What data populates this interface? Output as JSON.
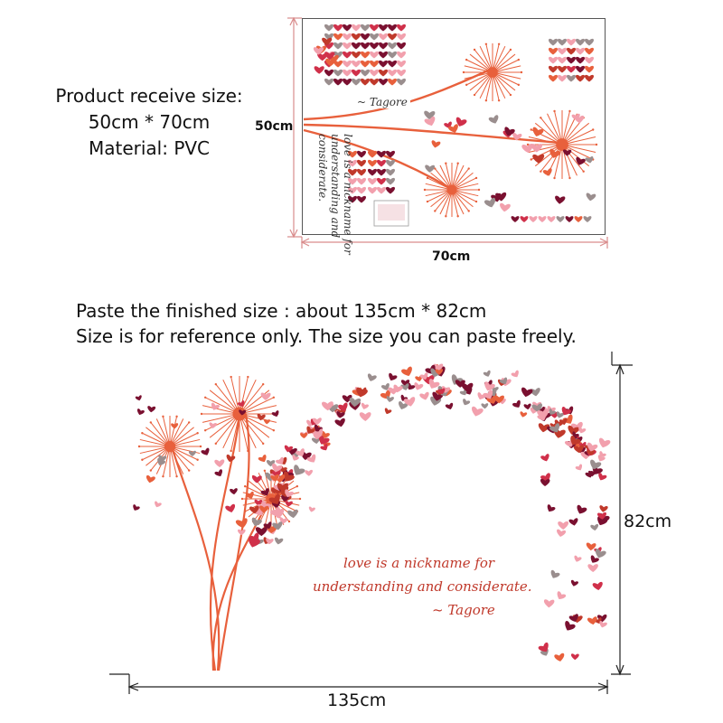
{
  "spec": {
    "line1": "Product receive size:",
    "line2": "50cm * 70cm",
    "line3": "Material: PVC"
  },
  "sheet": {
    "height_label": "50cm",
    "width_label": "70cm",
    "quote_line1": "love is a nickname for",
    "quote_line2": "understanding and",
    "quote_line3": "considerate.",
    "signature": "~ Tagore"
  },
  "notes": {
    "finished_size": "Paste the finished size : about 135cm * 82cm",
    "reference": "Size is for reference only. The size you can paste freely."
  },
  "wall": {
    "quote_line1": "love is a nickname for",
    "quote_line2": "understanding and considerate.",
    "signature": "~ Tagore",
    "height_label": "82cm",
    "width_label": "135cm"
  },
  "colors": {
    "orange": "#e8603c",
    "red": "#c0392b",
    "pink": "#f2a0ad",
    "maroon": "#7a1030",
    "gray": "#9a8e8e",
    "crimson": "#d0304a",
    "dim_line": "#d98c8c"
  }
}
